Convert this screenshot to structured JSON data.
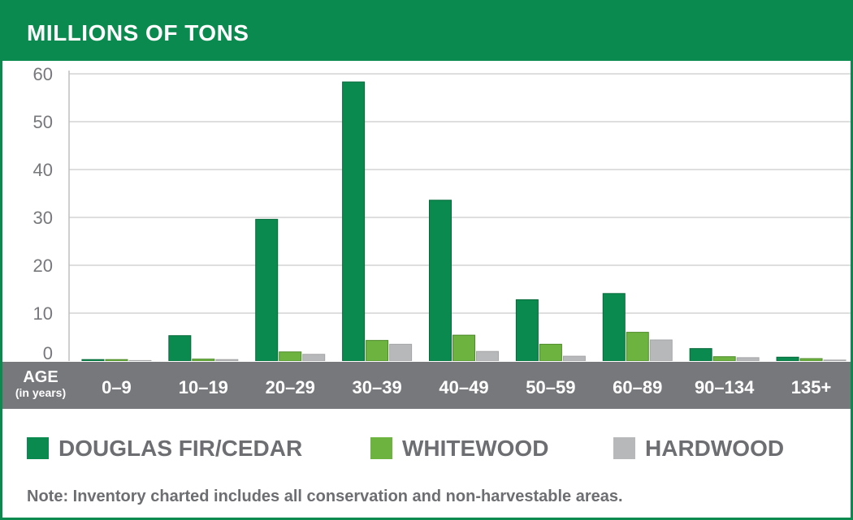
{
  "header": {
    "title": "MILLIONS OF TONS"
  },
  "axis": {
    "age_title": "AGE",
    "age_subtitle": "(in years)"
  },
  "legend": [
    {
      "label": "DOUGLAS FIR/CEDAR",
      "color": "#0b8a4f"
    },
    {
      "label": "WHITEWOOD",
      "color": "#6db33f"
    },
    {
      "label": "HARDWOOD",
      "color": "#b7b8ba"
    }
  ],
  "note": "Note: Inventory charted includes all conservation and non-harvestable areas.",
  "chart_data": {
    "type": "bar",
    "title": "MILLIONS OF TONS",
    "xlabel": "AGE (in years)",
    "ylabel": "",
    "ylim": [
      0,
      60
    ],
    "yticks": [
      "0",
      "10",
      "20",
      "30",
      "40",
      "50",
      "60"
    ],
    "grid": true,
    "categories": [
      "0–9",
      "10–19",
      "20–29",
      "30–39",
      "40–49",
      "50–59",
      "60–89",
      "90–134",
      "135+"
    ],
    "series": [
      {
        "name": "DOUGLAS FIR/CEDAR",
        "color": "#0b8a4f",
        "values": [
          0.3,
          5.3,
          29.6,
          58.3,
          33.6,
          12.8,
          14.1,
          2.6,
          0.8
        ]
      },
      {
        "name": "WHITEWOOD",
        "color": "#6db33f",
        "values": [
          0.3,
          0.4,
          1.9,
          4.3,
          5.4,
          3.5,
          6.0,
          0.9,
          0.5
        ]
      },
      {
        "name": "HARDWOOD",
        "color": "#b7b8ba",
        "values": [
          0.1,
          0.3,
          1.4,
          3.5,
          2.0,
          1.0,
          4.4,
          0.7,
          0.2
        ]
      }
    ],
    "legend_position": "bottom"
  }
}
